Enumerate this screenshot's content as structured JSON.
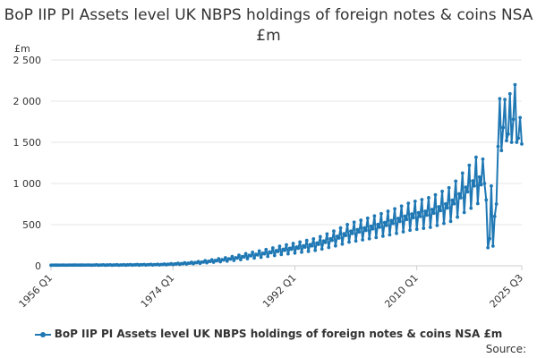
{
  "chart_data": {
    "type": "line",
    "title": "BoP IIP PI Assets level UK NBPS holdings of foreign notes & coins NSA £m",
    "unit_label": "£m",
    "xlabel": "",
    "ylabel": "",
    "ylim": [
      0,
      2500
    ],
    "y_ticks": [
      "0",
      "500",
      "1 000",
      "1 500",
      "2 000",
      "2 500"
    ],
    "x_tick_labels": [
      "1956 Q1",
      "1974 Q1",
      "1992 Q1",
      "2010 Q1",
      "2025 Q3"
    ],
    "x_range": [
      "1956 Q1",
      "2025 Q3"
    ],
    "grid": true,
    "legend_position": "bottom",
    "series": [
      {
        "name": "BoP IIP PI Assets level UK NBPS holdings of foreign notes & coins NSA £m",
        "color": "#1f78b4",
        "anchors": [
          {
            "x": "1956 Q1",
            "y": 8
          },
          {
            "x": "1966 Q1",
            "y": 10
          },
          {
            "x": "1972 Q1",
            "y": 15
          },
          {
            "x": "1976 Q1",
            "y": 30
          },
          {
            "x": "1980 Q1",
            "y": 60
          },
          {
            "x": "1985 Q1",
            "y": 120
          },
          {
            "x": "1990 Q1",
            "y": 190
          },
          {
            "x": "1995 Q1",
            "y": 260
          },
          {
            "x": "2000 Q1",
            "y": 400
          },
          {
            "x": "2005 Q1",
            "y": 500
          },
          {
            "x": "2009 Q1",
            "y": 600
          },
          {
            "x": "2012 Q1",
            "y": 650
          },
          {
            "x": "2015 Q1",
            "y": 750
          },
          {
            "x": "2017 Q1",
            "y": 900
          },
          {
            "x": "2019 Q1",
            "y": 1050
          },
          {
            "x": "2020 Q1",
            "y": 1000
          }
        ],
        "seasonal_swing": [
          {
            "from": "1956 Q1",
            "to": "1962 Q1",
            "amplitude": 0.1
          },
          {
            "from": "1962 Q1",
            "to": "2020 Q1",
            "amplitude": 0.4
          }
        ],
        "points": [
          {
            "x": "2020 Q2",
            "y": 800
          },
          {
            "x": "2020 Q3",
            "y": 220
          },
          {
            "x": "2020 Q4",
            "y": 330
          },
          {
            "x": "2021 Q1",
            "y": 970
          },
          {
            "x": "2021 Q2",
            "y": 240
          },
          {
            "x": "2021 Q3",
            "y": 600
          },
          {
            "x": "2021 Q4",
            "y": 750
          },
          {
            "x": "2022 Q1",
            "y": 1450
          },
          {
            "x": "2022 Q2",
            "y": 2030
          },
          {
            "x": "2022 Q3",
            "y": 1400
          },
          {
            "x": "2022 Q4",
            "y": 1680
          },
          {
            "x": "2023 Q1",
            "y": 2020
          },
          {
            "x": "2023 Q2",
            "y": 1520
          },
          {
            "x": "2023 Q3",
            "y": 1600
          },
          {
            "x": "2023 Q4",
            "y": 2090
          },
          {
            "x": "2024 Q1",
            "y": 1500
          },
          {
            "x": "2024 Q2",
            "y": 1780
          },
          {
            "x": "2024 Q3",
            "y": 2200
          },
          {
            "x": "2024 Q4",
            "y": 1500
          },
          {
            "x": "2025 Q1",
            "y": 1550
          },
          {
            "x": "2025 Q2",
            "y": 1800
          },
          {
            "x": "2025 Q3",
            "y": 1480
          }
        ]
      }
    ]
  },
  "legend": {
    "label": "BoP IIP PI Assets level UK NBPS holdings of foreign notes & coins NSA £m"
  },
  "source": {
    "label": "Source:"
  }
}
